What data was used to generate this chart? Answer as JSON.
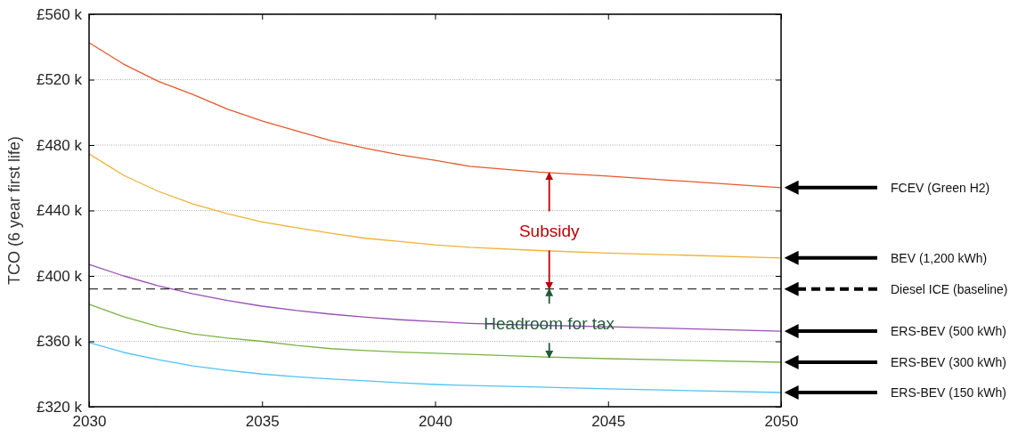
{
  "chart_data": {
    "type": "line",
    "ylabel": "TCO (6 year first life)",
    "x": [
      2030,
      2031,
      2032,
      2033,
      2034,
      2035,
      2036,
      2037,
      2038,
      2039,
      2040,
      2041,
      2043,
      2045,
      2050
    ],
    "series": [
      {
        "name": "FCEV (Green H2)",
        "color": "#e8582a",
        "values": [
          542.6,
          529.5,
          519,
          511,
          502,
          494.7,
          488.7,
          482.7,
          478,
          474,
          470.7,
          467,
          463.5,
          461,
          454
        ]
      },
      {
        "name": "BEV (1,200 kWh)",
        "color": "#f2b134",
        "values": [
          474.6,
          461.5,
          451.7,
          444,
          438,
          433,
          429.4,
          426,
          423,
          421,
          419,
          417.5,
          415.5,
          414,
          411
        ]
      },
      {
        "name": "ERS-BEV (500 kWh)",
        "color": "#9b4fb5",
        "values": [
          407,
          400,
          394,
          389,
          385,
          381.5,
          378.8,
          376.6,
          374.8,
          373.2,
          372,
          371,
          369.8,
          368.9,
          366.2
        ]
      },
      {
        "name": "ERS-BEV (300 kWh)",
        "color": "#7cb342",
        "values": [
          382.6,
          375,
          369,
          364.6,
          362,
          360,
          357.5,
          355.5,
          354.3,
          353.4,
          352.7,
          352,
          350.5,
          349.4,
          347.2
        ]
      },
      {
        "name": "ERS-BEV (150 kWh)",
        "color": "#4fc3f7",
        "values": [
          359.2,
          353.2,
          348.8,
          345,
          342.3,
          340,
          338.3,
          336.9,
          335.8,
          334.6,
          333.6,
          333,
          332,
          330.9,
          328.7
        ]
      },
      {
        "name": "Diesel ICE (baseline)",
        "color": "#000000",
        "line_style": "dashed",
        "values": [
          392,
          392,
          392,
          392,
          392,
          392,
          392,
          392,
          392,
          392,
          392,
          392,
          392,
          392,
          392
        ]
      }
    ],
    "xlim": [
      2030,
      2050
    ],
    "xticks": [
      2030,
      2035,
      2040,
      2045,
      2050
    ],
    "ylim": [
      320,
      560
    ],
    "yticks": [
      {
        "value": 320,
        "label": "£320 k"
      },
      {
        "value": 360,
        "label": "£360 k"
      },
      {
        "value": 400,
        "label": "£400 k"
      },
      {
        "value": 440,
        "label": "£440 k"
      },
      {
        "value": 480,
        "label": "£480 k"
      },
      {
        "value": 520,
        "label": "£520 k"
      },
      {
        "value": 560,
        "label": "£560 k"
      }
    ],
    "grid": "y",
    "line_style": "solid",
    "annotations": [
      {
        "text": "Subsidy",
        "x": 2043.3,
        "y": 463
      },
      {
        "text": "Headroom for tax",
        "x": 2043.3,
        "y": 350
      }
    ]
  }
}
